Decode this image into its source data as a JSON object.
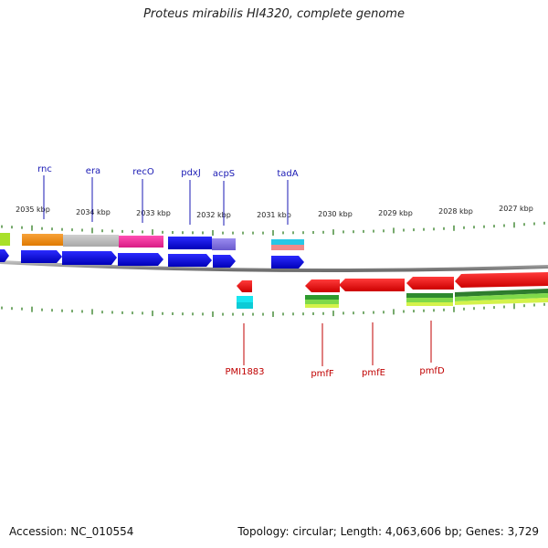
{
  "title": "Proteus mirabilis HI4320, complete genome",
  "footer": {
    "accession": "Accession: NC_010554",
    "stats": "Topology: circular; Length: 4,063,606 bp; Genes: 3,729"
  },
  "scale_labels": [
    "2035 kbp",
    "2034 kbp",
    "2033 kbp",
    "2032 kbp",
    "2031 kbp",
    "2030 kbp",
    "2029 kbp",
    "2028 kbp",
    "2027 kbp"
  ],
  "gene_labels_top": [
    "rnc",
    "era",
    "recO",
    "pdxJ",
    "acpS",
    "tadA"
  ],
  "gene_labels_bottom": [
    "PMI1883",
    "pmfF",
    "pmfE",
    "pmfD"
  ],
  "colors": {
    "forward_gene": "#0000e6",
    "reverse_gene": "#ff0000",
    "backbone": "#8a8a8a",
    "tick": "#2e7d1e",
    "label_top": "#1a1ab4",
    "label_bottom": "#c00000"
  }
}
